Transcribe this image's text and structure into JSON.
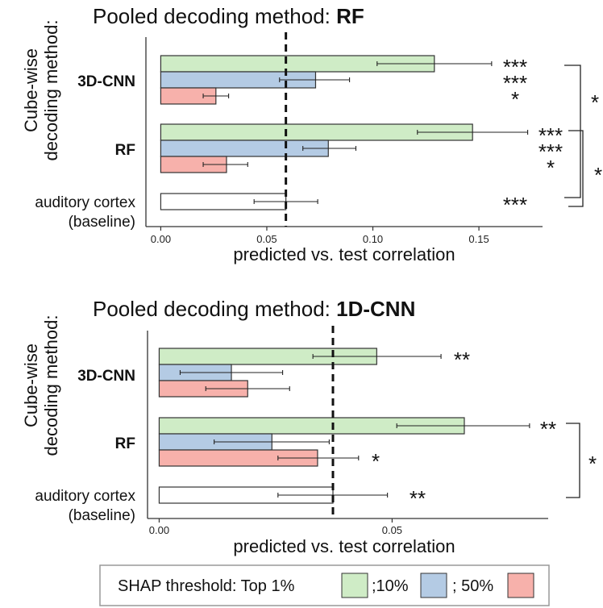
{
  "colors": {
    "top1": "#cfecc6",
    "top10": "#b4cbe4",
    "top50": "#f7b1ab",
    "baseline": "#ffffff",
    "stroke": "#333333"
  },
  "legend": {
    "prefix": "SHAP threshold: Top 1%",
    "sep1": ";10%",
    "sep2": "; 50%"
  },
  "chart_data": [
    {
      "type": "bar",
      "orientation": "horizontal",
      "title_prefix": "Pooled decoding method: ",
      "title_bold": "RF",
      "ylabel_line1": "Cube-wise",
      "ylabel_line2": "decoding method:",
      "xlabel": "predicted vs. test correlation",
      "xlim": [
        -0.007,
        0.18
      ],
      "xticks": [
        "0.00",
        "0.05",
        "0.10",
        "0.15"
      ],
      "xtick_values": [
        0.0,
        0.05,
        0.1,
        0.15
      ],
      "reference_line": 0.059,
      "groups": [
        {
          "label": "3D-CNN",
          "bold": true,
          "bars": [
            {
              "series": "Top 1%",
              "value": 0.129,
              "err_low": 0.102,
              "err_high": 0.156,
              "sig": "***"
            },
            {
              "series": "10%",
              "value": 0.073,
              "err_low": 0.056,
              "err_high": 0.089,
              "sig": "***"
            },
            {
              "series": "50%",
              "value": 0.026,
              "err_low": 0.02,
              "err_high": 0.032,
              "sig": "*"
            }
          ]
        },
        {
          "label": "RF",
          "bold": true,
          "bars": [
            {
              "series": "Top 1%",
              "value": 0.147,
              "err_low": 0.121,
              "err_high": 0.173,
              "sig": "***"
            },
            {
              "series": "10%",
              "value": 0.079,
              "err_low": 0.067,
              "err_high": 0.092,
              "sig": "***"
            },
            {
              "series": "50%",
              "value": 0.031,
              "err_low": 0.02,
              "err_high": 0.041,
              "sig": "*"
            }
          ]
        },
        {
          "label_line1": "auditory cortex",
          "label_line2": "(baseline)",
          "bold": false,
          "bars": [
            {
              "series": "baseline",
              "value": 0.059,
              "err_low": 0.044,
              "err_high": 0.074,
              "sig": "***"
            }
          ]
        }
      ],
      "brackets": [
        {
          "sig": "*"
        },
        {
          "sig": "*"
        }
      ]
    },
    {
      "type": "bar",
      "orientation": "horizontal",
      "title_prefix": "Pooled decoding method: ",
      "title_bold": "1D-CNN",
      "ylabel_line1": "Cube-wise",
      "ylabel_line2": "decoding method:",
      "xlabel": "predicted vs. test correlation",
      "xlim": [
        -0.0025,
        0.0835
      ],
      "xticks": [
        "0.00",
        "0.05"
      ],
      "xtick_values": [
        0.0,
        0.05
      ],
      "reference_line": 0.0373,
      "groups": [
        {
          "label": "3D-CNN",
          "bold": true,
          "bars": [
            {
              "series": "Top 1%",
              "value": 0.0467,
              "err_low": 0.033,
              "err_high": 0.0605,
              "sig": "**"
            },
            {
              "series": "10%",
              "value": 0.0155,
              "err_low": 0.0045,
              "err_high": 0.0265,
              "sig": ""
            },
            {
              "series": "50%",
              "value": 0.019,
              "err_low": 0.01,
              "err_high": 0.028,
              "sig": ""
            }
          ]
        },
        {
          "label": "RF",
          "bold": true,
          "bars": [
            {
              "series": "Top 1%",
              "value": 0.0655,
              "err_low": 0.051,
              "err_high": 0.0795,
              "sig": "**"
            },
            {
              "series": "10%",
              "value": 0.0242,
              "err_low": 0.0118,
              "err_high": 0.0365,
              "sig": ""
            },
            {
              "series": "50%",
              "value": 0.034,
              "err_low": 0.0255,
              "err_high": 0.0428,
              "sig": "*"
            }
          ]
        },
        {
          "label_line1": "auditory cortex",
          "label_line2": "(baseline)",
          "bold": false,
          "bars": [
            {
              "series": "baseline",
              "value": 0.0373,
              "err_low": 0.0255,
              "err_high": 0.049,
              "sig": "**"
            }
          ]
        }
      ],
      "brackets": [
        {
          "sig": "*"
        }
      ]
    }
  ]
}
